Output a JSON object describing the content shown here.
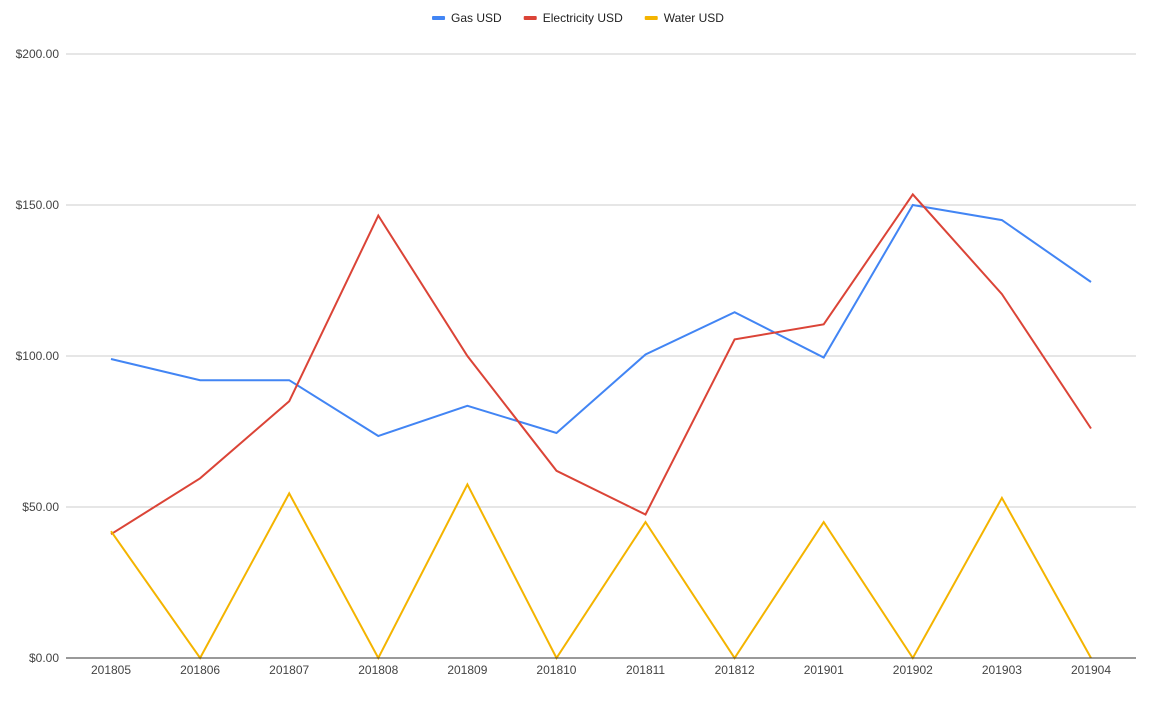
{
  "chart_data": {
    "type": "line",
    "categories": [
      "201805",
      "201806",
      "201807",
      "201808",
      "201809",
      "201810",
      "201811",
      "201812",
      "201901",
      "201902",
      "201903",
      "201904"
    ],
    "series": [
      {
        "name": "Gas USD",
        "color": "#4285f4",
        "values": [
          99,
          92,
          92,
          73.5,
          83.5,
          74.5,
          100.5,
          114.5,
          99.5,
          150,
          145,
          124.5
        ]
      },
      {
        "name": "Electricity USD",
        "color": "#db4437",
        "values": [
          41,
          59.5,
          85,
          146.5,
          100,
          62,
          47.5,
          105.5,
          110.5,
          153.5,
          120.5,
          76
        ]
      },
      {
        "name": "Water USD",
        "color": "#f4b400",
        "values": [
          42,
          0,
          54.5,
          0,
          57.5,
          0,
          45,
          0,
          45,
          0,
          53,
          0
        ]
      }
    ],
    "y_ticks": [
      "$0.00",
      "$50.00",
      "$100.00",
      "$150.00",
      "$200.00"
    ],
    "ylim": [
      0,
      200
    ],
    "y_tick_step": 50,
    "grid": true,
    "legend_position": "top-center",
    "title": "",
    "xlabel": "",
    "ylabel": ""
  }
}
